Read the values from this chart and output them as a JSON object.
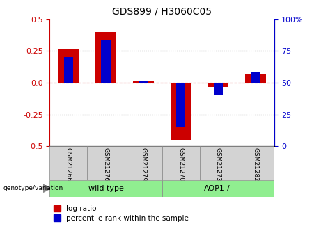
{
  "title": "GDS899 / H3060C05",
  "samples": [
    "GSM21266",
    "GSM21276",
    "GSM21279",
    "GSM21270",
    "GSM21273",
    "GSM21282"
  ],
  "groups": [
    {
      "label": "wild type",
      "indices": [
        0,
        1,
        2
      ],
      "color": "#90ee90"
    },
    {
      "label": "AQP1-/-",
      "indices": [
        3,
        4,
        5
      ],
      "color": "#90ee90"
    }
  ],
  "log_ratio": [
    0.27,
    0.4,
    0.01,
    -0.45,
    -0.03,
    0.07
  ],
  "percentile_rank_right": [
    70,
    84,
    51,
    15,
    40,
    58
  ],
  "ylim": [
    -0.5,
    0.5
  ],
  "right_ylim": [
    0,
    100
  ],
  "yticks_left": [
    -0.5,
    -0.25,
    0.0,
    0.25,
    0.5
  ],
  "yticks_right": [
    0,
    25,
    50,
    75,
    100
  ],
  "left_color": "#cc0000",
  "right_color": "#0000cc",
  "hline_zero_color": "#cc0000",
  "hline_other_color": "#000000",
  "red_bar_width": 0.55,
  "blue_bar_width": 0.25,
  "label_log_ratio": "log ratio",
  "label_percentile": "percentile rank within the sample",
  "group_label_prefix": "genotype/variation",
  "background_color": "#ffffff",
  "plot_bg": "#ffffff",
  "tick_label_color_left": "#cc0000",
  "tick_label_color_right": "#0000cc",
  "sample_cell_color": "#d3d3d3",
  "group_cell_color": "#90ee90"
}
